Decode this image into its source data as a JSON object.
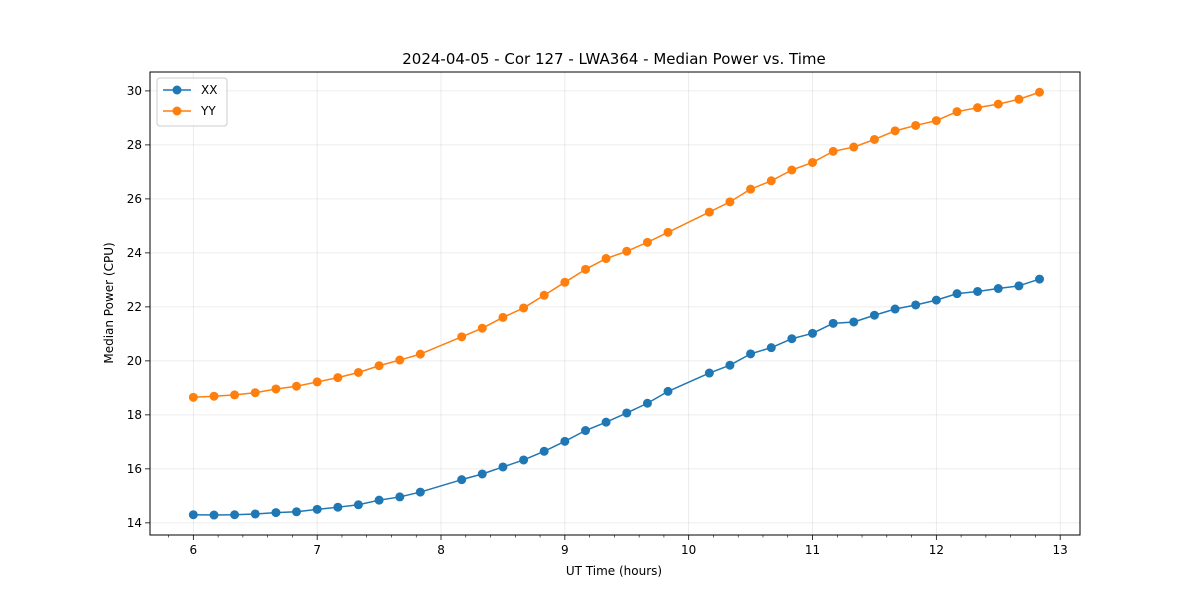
{
  "chart_data": {
    "type": "line",
    "title": "2024-04-05 - Cor 127 - LWA364 - Median Power vs. Time",
    "xlabel": "UT Time (hours)",
    "ylabel": "Median Power (CPU)",
    "xlim": [
      5.65,
      13.16
    ],
    "ylim": [
      13.55,
      30.7
    ],
    "xticks": [
      6,
      7,
      8,
      9,
      10,
      11,
      12,
      13
    ],
    "yticks": [
      14,
      16,
      18,
      20,
      22,
      24,
      26,
      28,
      30
    ],
    "x_minor_step": 0.2,
    "grid": true,
    "legend_position": "top-left",
    "x": [
      6.0,
      6.167,
      6.333,
      6.5,
      6.667,
      6.833,
      7.0,
      7.167,
      7.333,
      7.5,
      7.667,
      7.833,
      8.167,
      8.333,
      8.5,
      8.667,
      8.833,
      9.0,
      9.167,
      9.333,
      9.5,
      9.667,
      9.833,
      10.167,
      10.333,
      10.5,
      10.667,
      10.833,
      11.0,
      11.167,
      11.333,
      11.5,
      11.667,
      11.833,
      12.0,
      12.167,
      12.333,
      12.5,
      12.667,
      12.833
    ],
    "series": [
      {
        "name": "XX",
        "color": "#1f77b4",
        "values": [
          14.3,
          14.29,
          14.3,
          14.33,
          14.38,
          14.41,
          14.5,
          14.58,
          14.67,
          14.84,
          14.96,
          15.14,
          15.6,
          15.81,
          16.07,
          16.33,
          16.65,
          17.02,
          17.42,
          17.73,
          18.07,
          18.43,
          18.87,
          19.55,
          19.84,
          20.26,
          20.49,
          20.82,
          21.02,
          21.39,
          21.44,
          21.69,
          21.92,
          22.07,
          22.25,
          22.49,
          22.57,
          22.68,
          22.78,
          23.03
        ]
      },
      {
        "name": "YY",
        "color": "#ff7f0e",
        "values": [
          18.65,
          18.69,
          18.74,
          18.82,
          18.96,
          19.06,
          19.22,
          19.38,
          19.57,
          19.82,
          20.03,
          20.25,
          20.89,
          21.21,
          21.61,
          21.96,
          22.43,
          22.91,
          23.39,
          23.79,
          24.06,
          24.39,
          24.76,
          25.51,
          25.89,
          26.36,
          26.67,
          27.07,
          27.35,
          27.76,
          27.92,
          28.2,
          28.52,
          28.72,
          28.9,
          29.23,
          29.38,
          29.51,
          29.69,
          29.95
        ]
      }
    ]
  }
}
